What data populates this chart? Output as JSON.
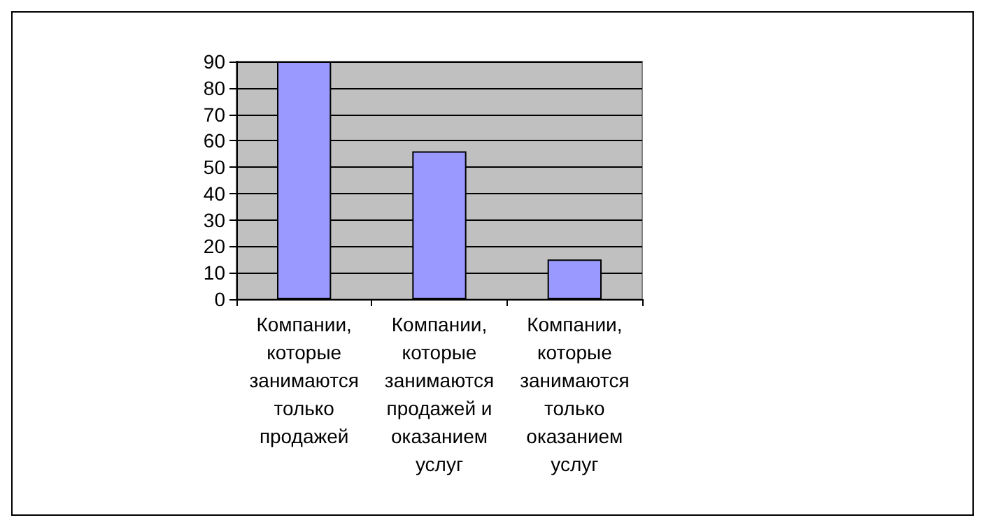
{
  "chart_data": {
    "type": "bar",
    "categories": [
      "Компании, которые занимаются только продажей",
      "Компании, которые занимаются продажей и оказанием услуг",
      "Компании, которые занимаются только оказанием услуг"
    ],
    "values": [
      90,
      56,
      15
    ],
    "color": "#9999ff",
    "ylim": [
      0,
      90
    ],
    "yticks": [
      0,
      10,
      20,
      30,
      40,
      50,
      60,
      70,
      80,
      90
    ],
    "grid": "y"
  }
}
